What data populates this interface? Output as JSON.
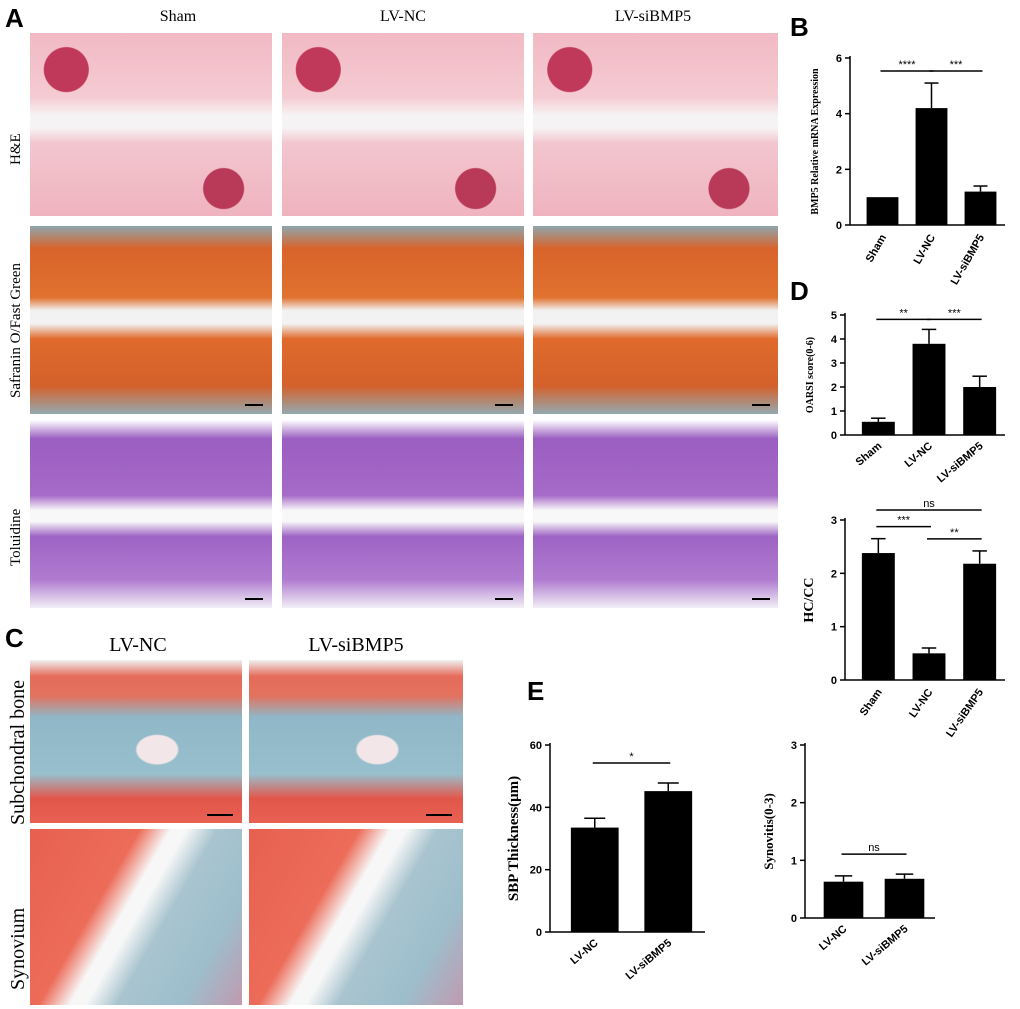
{
  "panels": {
    "A": "A",
    "B": "B",
    "C": "C",
    "D": "D",
    "E": "E"
  },
  "panel_a": {
    "columns": [
      "Sham",
      "LV-NC",
      "LV-siBMP5"
    ],
    "rows": [
      "H&E",
      "Safranin O/Fast Green",
      "Toluidine"
    ]
  },
  "panel_c": {
    "columns": [
      "LV-NC",
      "LV-siBMP5"
    ],
    "rows": [
      "Subchondral bone",
      "Synovium"
    ]
  },
  "chart_data": [
    {
      "id": "B",
      "type": "bar",
      "categories": [
        "Sham",
        "LV-NC",
        "LV-siBMP5"
      ],
      "values": [
        1.0,
        4.2,
        1.2
      ],
      "errors": [
        0,
        0.9,
        0.2
      ],
      "ylabel": "BMP5 Relative mRNA Expression",
      "ylim": [
        0,
        6
      ],
      "yticks": [
        0,
        2,
        4,
        6
      ],
      "significance": [
        {
          "from": 0,
          "to": 1,
          "label": "****"
        },
        {
          "from": 1,
          "to": 2,
          "label": "***"
        }
      ]
    },
    {
      "id": "D1",
      "type": "bar",
      "categories": [
        "Sham",
        "LV-NC",
        "LV-siBMP5"
      ],
      "values": [
        0.55,
        3.8,
        2.0
      ],
      "errors": [
        0.15,
        0.6,
        0.45
      ],
      "ylabel": "OARSI score(0-6)",
      "ylim": [
        0,
        5
      ],
      "yticks": [
        0,
        1,
        2,
        3,
        4,
        5
      ],
      "significance": [
        {
          "from": 0,
          "to": 1,
          "label": "**"
        },
        {
          "from": 1,
          "to": 2,
          "label": "***"
        }
      ]
    },
    {
      "id": "D2",
      "type": "bar",
      "categories": [
        "Sham",
        "LV-NC",
        "LV-siBMP5"
      ],
      "values": [
        2.38,
        0.5,
        2.18
      ],
      "errors": [
        0.27,
        0.1,
        0.24
      ],
      "ylabel": "HC/CC",
      "ylim": [
        0,
        3
      ],
      "yticks": [
        0,
        1,
        2,
        3
      ],
      "significance": [
        {
          "from": 0,
          "to": 1,
          "label": "***"
        },
        {
          "from": 1,
          "to": 2,
          "label": "**"
        },
        {
          "from": 0,
          "to": 2,
          "label": "ns"
        }
      ]
    },
    {
      "id": "E1",
      "type": "bar",
      "categories": [
        "LV-NC",
        "LV-siBMP5"
      ],
      "values": [
        33.5,
        45.2
      ],
      "errors": [
        3.0,
        2.6
      ],
      "ylabel": "SBP Thickness(μm)",
      "ylim": [
        0,
        60
      ],
      "yticks": [
        0,
        20,
        40,
        60
      ],
      "significance": [
        {
          "from": 0,
          "to": 1,
          "label": "*"
        }
      ]
    },
    {
      "id": "E2",
      "type": "bar",
      "categories": [
        "LV-NC",
        "LV-siBMP5"
      ],
      "values": [
        0.63,
        0.68
      ],
      "errors": [
        0.1,
        0.08
      ],
      "ylabel": "Synovitis(0-3)",
      "ylim": [
        0,
        3
      ],
      "yticks": [
        0,
        1,
        2,
        3
      ],
      "significance": [
        {
          "from": 0,
          "to": 1,
          "label": "ns"
        }
      ]
    }
  ]
}
